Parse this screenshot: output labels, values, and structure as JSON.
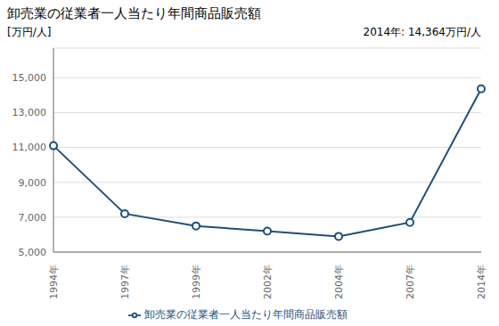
{
  "chart_data": {
    "type": "line",
    "title": "卸売業の従業者一人当たり年間商品販売額",
    "y_label": "[万円/人]",
    "annotation": "2014年: 14,364万円/人",
    "categories": [
      "1994年",
      "1997年",
      "1999年",
      "2002年",
      "2004年",
      "2007年",
      "2014年"
    ],
    "series": [
      {
        "name": "卸売業の従業者一人当たり年間商品販売額",
        "color": "#1F4E79",
        "marker": "circle",
        "values": [
          11100,
          7200,
          6500,
          6200,
          5900,
          6700,
          14364
        ]
      }
    ],
    "ylim": [
      5000,
      16700
    ],
    "yticks": [
      {
        "value": 5000,
        "label": "5,000"
      },
      {
        "value": 7000,
        "label": "7,000"
      },
      {
        "value": 9000,
        "label": "9,000"
      },
      {
        "value": 11000,
        "label": "11,000"
      },
      {
        "value": 13000,
        "label": "13,000"
      },
      {
        "value": 15000,
        "label": "15,000"
      }
    ],
    "grid": true,
    "legend": "bottom"
  }
}
